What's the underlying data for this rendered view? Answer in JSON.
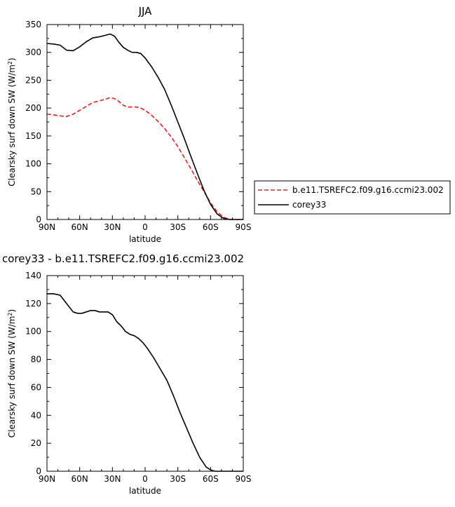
{
  "chart_data": [
    {
      "type": "line",
      "title": "JJA",
      "xlabel": "latitude",
      "ylabel": "Clearsky surf down SW (W/m",
      "ylabel_sup": "2",
      "ylabel_close": ")",
      "xlim": [
        90,
        -90
      ],
      "ylim": [
        0,
        350
      ],
      "x_ticks": [
        90,
        60,
        30,
        0,
        -30,
        -60,
        -90
      ],
      "x_tick_labels": [
        "90N",
        "60N",
        "30N",
        "0",
        "30S",
        "60S",
        "90S"
      ],
      "y_ticks": [
        0,
        50,
        100,
        150,
        200,
        250,
        300,
        350
      ],
      "y_tick_labels": [
        "0",
        "50",
        "100",
        "150",
        "200",
        "250",
        "300",
        "350"
      ],
      "legend": "right",
      "series": [
        {
          "name": "b.e11.TSREFC2.f09.g16.ccmi23.002",
          "color": "#e02020",
          "dash": "dashed",
          "x": [
            90,
            84,
            78,
            72,
            66,
            60,
            54,
            48,
            42,
            36,
            32,
            28,
            24,
            20,
            16,
            12,
            8,
            4,
            0,
            -6,
            -12,
            -18,
            -24,
            -30,
            -36,
            -42,
            -48,
            -54,
            -60,
            -66,
            -72,
            -78,
            -84,
            -90
          ],
          "y": [
            189,
            188,
            186,
            185,
            189,
            196,
            203,
            210,
            213,
            216,
            219,
            217,
            212,
            205,
            202,
            202,
            202,
            200,
            196,
            187,
            176,
            163,
            148,
            131,
            111,
            91,
            70,
            50,
            30,
            14,
            4,
            0,
            0,
            0
          ]
        },
        {
          "name": "corey33",
          "color": "#000000",
          "dash": "solid",
          "x": [
            90,
            84,
            78,
            72,
            66,
            60,
            54,
            48,
            42,
            36,
            32,
            28,
            24,
            20,
            16,
            12,
            8,
            4,
            0,
            -6,
            -12,
            -18,
            -24,
            -30,
            -36,
            -42,
            -48,
            -54,
            -60,
            -66,
            -72,
            -78,
            -84,
            -90
          ],
          "y": [
            316,
            315,
            313,
            304,
            303,
            310,
            319,
            326,
            328,
            331,
            333,
            329,
            318,
            309,
            304,
            300,
            300,
            298,
            290,
            274,
            255,
            233,
            205,
            175,
            145,
            113,
            82,
            52,
            27,
            10,
            2,
            0,
            0,
            0
          ]
        }
      ]
    },
    {
      "type": "line",
      "title": "corey33 - b.e11.TSREFC2.f09.g16.ccmi23.002",
      "xlabel": "latitude",
      "ylabel": "Clearsky surf down SW (W/m",
      "ylabel_sup": "2",
      "ylabel_close": ")",
      "xlim": [
        90,
        -90
      ],
      "ylim": [
        0,
        140
      ],
      "x_ticks": [
        90,
        60,
        30,
        0,
        -30,
        -60,
        -90
      ],
      "x_tick_labels": [
        "90N",
        "60N",
        "30N",
        "0",
        "30S",
        "60S",
        "90S"
      ],
      "y_ticks": [
        0,
        20,
        40,
        60,
        80,
        100,
        120,
        140
      ],
      "y_tick_labels": [
        "0",
        "20",
        "40",
        "60",
        "80",
        "100",
        "120",
        "140"
      ],
      "series": [
        {
          "color": "#000000",
          "dash": "solid",
          "x": [
            90,
            84,
            78,
            72,
            66,
            62,
            58,
            54,
            50,
            46,
            42,
            38,
            34,
            30,
            26,
            22,
            18,
            14,
            10,
            6,
            2,
            -2,
            -8,
            -14,
            -20,
            -26,
            -32,
            -38,
            -44,
            -50,
            -56,
            -60,
            -64,
            -66,
            -70,
            -76,
            -84,
            -90
          ],
          "y": [
            127,
            127,
            126,
            120,
            114,
            113,
            113,
            114,
            115,
            115,
            114,
            114,
            114,
            112,
            107,
            104,
            100,
            98,
            97,
            95,
            92,
            88,
            81,
            73,
            65,
            54,
            42,
            31,
            20,
            10,
            3,
            1,
            0,
            0,
            0,
            0,
            0,
            0
          ]
        }
      ]
    }
  ]
}
